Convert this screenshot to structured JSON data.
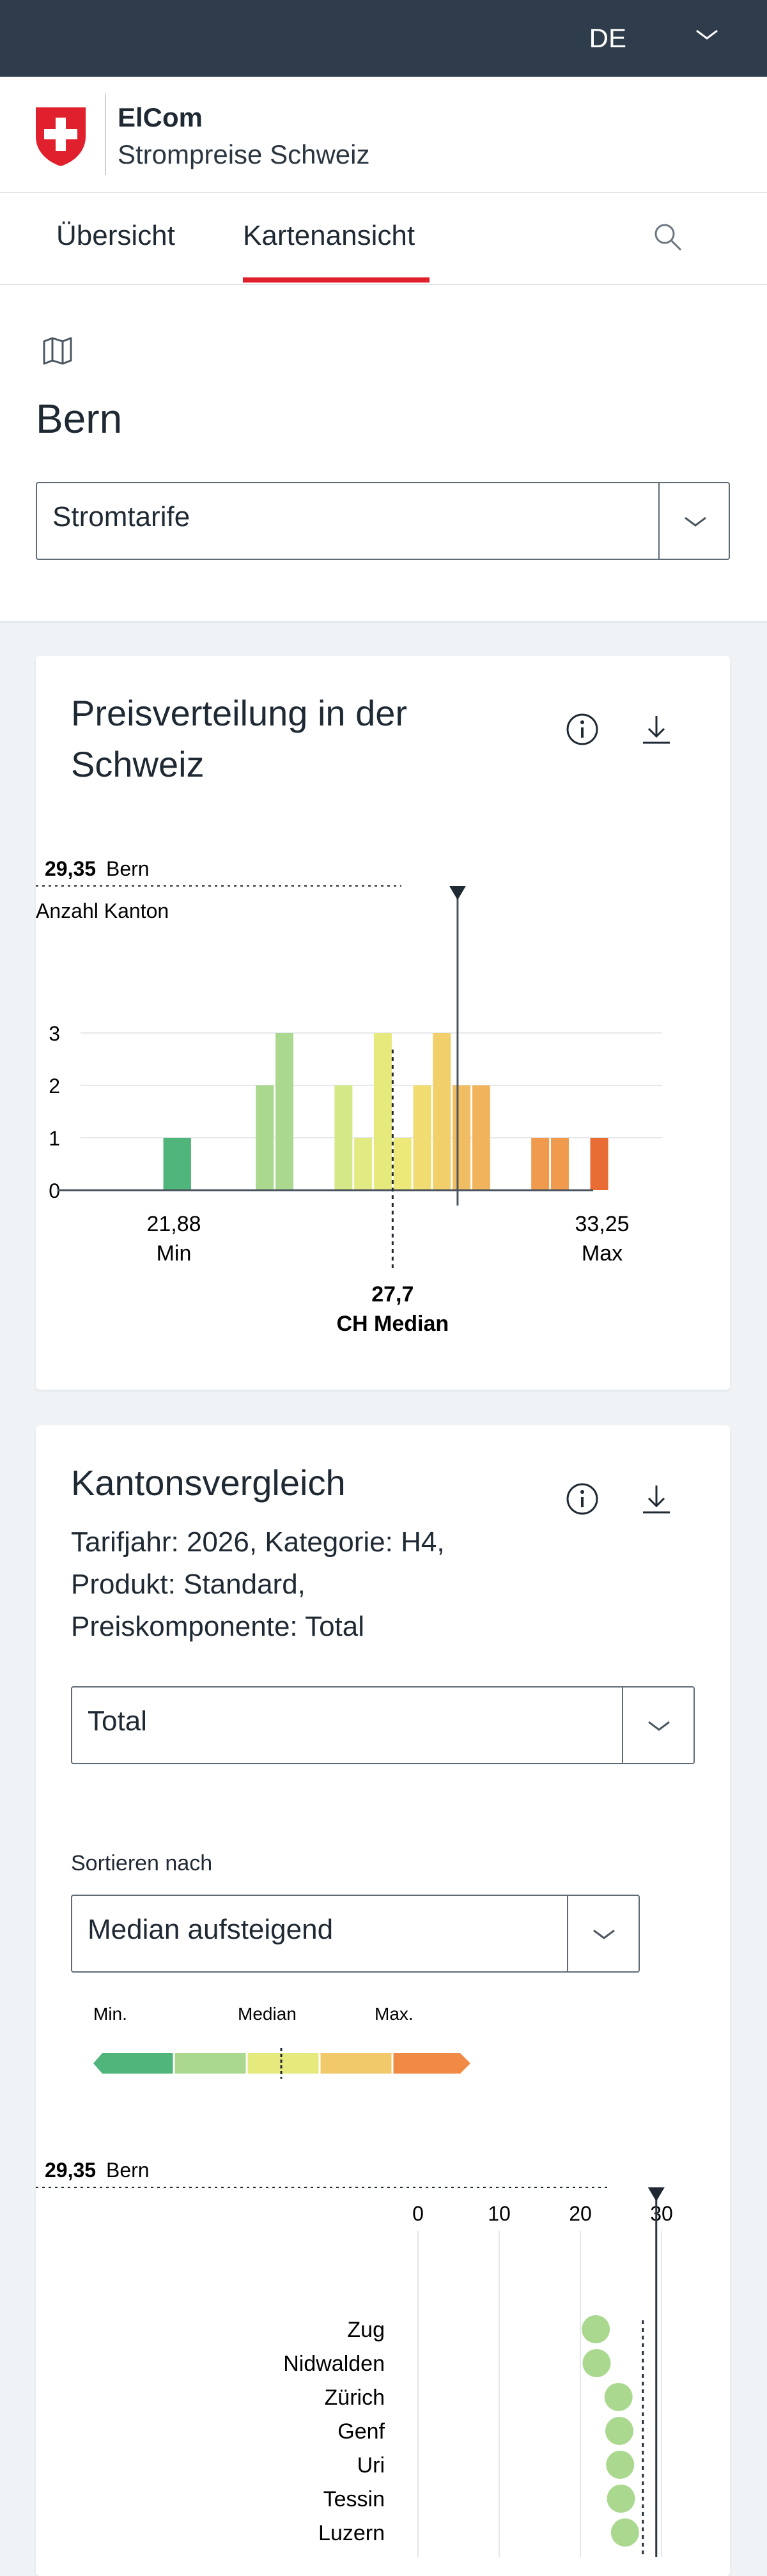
{
  "topbar": {
    "language": "DE"
  },
  "brand": {
    "name": "ElCom",
    "subtitle": "Strompreise Schweiz"
  },
  "nav": {
    "tabs": [
      {
        "label": "Übersicht"
      },
      {
        "label": "Kartenansicht",
        "active": true
      }
    ]
  },
  "hero": {
    "region": "Bern",
    "dropdown": {
      "value": "Stromtarife"
    }
  },
  "distribution_card": {
    "title_line1": "Preisverteilung in der",
    "title_line2": "Schweiz",
    "marker": {
      "value": "29,35",
      "label": "Bern"
    },
    "y_axis_title": "Anzahl Kanton",
    "y_ticks": [
      "0",
      "1",
      "2",
      "3"
    ],
    "min": {
      "value": "21,88",
      "label": "Min"
    },
    "max": {
      "value": "33,25",
      "label": "Max"
    },
    "median": {
      "value": "27,7",
      "label": "CH Median"
    }
  },
  "comparison_card": {
    "title": "Kantonsvergleich",
    "subtitle_line1": "Tarifjahr: 2026, Kategorie: H4,",
    "subtitle_line2": "Produkt: Standard,",
    "subtitle_line3": "Preiskomponente: Total",
    "component_dropdown": {
      "value": "Total"
    },
    "sort_label": "Sortieren nach",
    "sort_dropdown": {
      "value": "Median aufsteigend"
    },
    "legend": {
      "min": "Min.",
      "median": "Median",
      "max": "Max."
    },
    "marker": {
      "value": "29,35",
      "label": "Bern"
    },
    "x_ticks": [
      "0",
      "10",
      "20",
      "30"
    ],
    "cantons": [
      "Zug",
      "Nidwalden",
      "Zürich",
      "Genf",
      "Uri",
      "Tessin",
      "Luzern"
    ]
  },
  "colors": {
    "topbar": "#2f3c4b",
    "accent_red": "#e0202c",
    "scale": [
      "#4fb57a",
      "#a9d88e",
      "#e6ea7d",
      "#f1c86a",
      "#f08a44",
      "#e96c34"
    ]
  },
  "chart_data": [
    {
      "type": "bar",
      "title": "Preisverteilung in der Schweiz",
      "ylabel": "Anzahl Kanton",
      "ylim": [
        0,
        3
      ],
      "x_range": [
        21.88,
        33.25
      ],
      "bins": [
        {
          "x": 22.1,
          "count": 1,
          "color": "#4fb57a"
        },
        {
          "x": 22.35,
          "count": 1,
          "color": "#4fb57a"
        },
        {
          "x": 24.45,
          "count": 2,
          "color": "#a9d88e"
        },
        {
          "x": 24.95,
          "count": 3,
          "color": "#a9d88e"
        },
        {
          "x": 26.45,
          "count": 2,
          "color": "#d4e887"
        },
        {
          "x": 26.95,
          "count": 1,
          "color": "#e2ea84"
        },
        {
          "x": 27.45,
          "count": 3,
          "color": "#e6ea7d"
        },
        {
          "x": 27.95,
          "count": 1,
          "color": "#ece979"
        },
        {
          "x": 28.45,
          "count": 2,
          "color": "#f0dc70"
        },
        {
          "x": 28.95,
          "count": 3,
          "color": "#f1d06c"
        },
        {
          "x": 29.45,
          "count": 2,
          "color": "#f0bd62"
        },
        {
          "x": 29.95,
          "count": 2,
          "color": "#f0b55c"
        },
        {
          "x": 31.45,
          "count": 1,
          "color": "#ef9a4c"
        },
        {
          "x": 31.95,
          "count": 1,
          "color": "#ef9a4c"
        },
        {
          "x": 32.95,
          "count": 1,
          "color": "#e96c34"
        }
      ],
      "min": 21.88,
      "max": 33.25,
      "median": 27.7,
      "highlight": 29.35
    },
    {
      "type": "scatter",
      "title": "Kantonsvergleich",
      "xlim": [
        0,
        32
      ],
      "x_ticks": [
        0,
        10,
        20,
        30
      ],
      "median": 27.7,
      "highlight": 29.35,
      "points": [
        {
          "label": "Zug",
          "value": 21.9
        },
        {
          "label": "Nidwalden",
          "value": 22.0
        },
        {
          "label": "Zürich",
          "value": 24.7
        },
        {
          "label": "Genf",
          "value": 24.8
        },
        {
          "label": "Uri",
          "value": 24.9
        },
        {
          "label": "Tessin",
          "value": 25.0
        },
        {
          "label": "Luzern",
          "value": 25.5
        }
      ]
    }
  ]
}
